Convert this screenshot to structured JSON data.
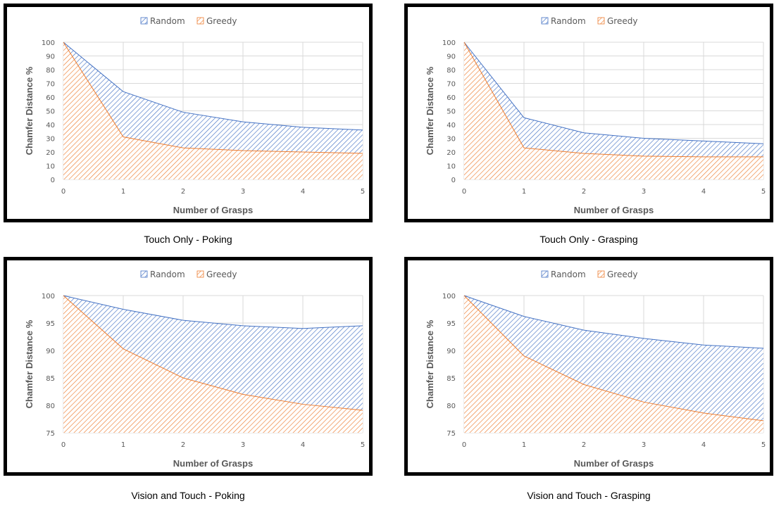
{
  "chart_data": [
    {
      "type": "area",
      "caption": "Touch Only - Poking",
      "xlabel": "Number of Grasps",
      "ylabel": "Chamfer Distance %",
      "x": [
        0,
        1,
        2,
        3,
        4,
        5
      ],
      "ylim": [
        0,
        100
      ],
      "yticks": [
        0,
        10,
        20,
        30,
        40,
        50,
        60,
        70,
        80,
        90,
        100
      ],
      "legend_position": "top",
      "series": [
        {
          "name": "Random",
          "values": [
            100,
            64,
            49,
            42,
            38,
            36
          ],
          "color": "#4472c4"
        },
        {
          "name": "Greedy",
          "values": [
            100,
            31,
            23,
            21,
            20,
            19
          ],
          "color": "#ed7d31"
        }
      ]
    },
    {
      "type": "area",
      "caption": "Touch Only - Grasping",
      "xlabel": "Number of Grasps",
      "ylabel": "Chamfer Distance %",
      "x": [
        0,
        1,
        2,
        3,
        4,
        5
      ],
      "ylim": [
        0,
        100
      ],
      "yticks": [
        0,
        10,
        20,
        30,
        40,
        50,
        60,
        70,
        80,
        90,
        100
      ],
      "legend_position": "top",
      "series": [
        {
          "name": "Random",
          "values": [
            100,
            45,
            34,
            30,
            28,
            26
          ],
          "color": "#4472c4"
        },
        {
          "name": "Greedy",
          "values": [
            100,
            23,
            19,
            17,
            16.5,
            16.5
          ],
          "color": "#ed7d31"
        }
      ]
    },
    {
      "type": "area",
      "caption": "Vision and Touch - Poking",
      "xlabel": "Number of Grasps",
      "ylabel": "Chamfer Distance %",
      "x": [
        0,
        1,
        2,
        3,
        4,
        5
      ],
      "ylim": [
        75,
        100
      ],
      "yticks": [
        75,
        80,
        85,
        90,
        95,
        100
      ],
      "legend_position": "top",
      "series": [
        {
          "name": "Random",
          "values": [
            100,
            97.5,
            95.5,
            94.5,
            94,
            94.5
          ],
          "color": "#4472c4"
        },
        {
          "name": "Greedy",
          "values": [
            100,
            90.3,
            85,
            82,
            80.2,
            79.1
          ],
          "color": "#ed7d31"
        }
      ]
    },
    {
      "type": "area",
      "caption": "Vision and Touch - Grasping",
      "xlabel": "Number of Grasps",
      "ylabel": "Chamfer Distance %",
      "x": [
        0,
        1,
        2,
        3,
        4,
        5
      ],
      "ylim": [
        75,
        100
      ],
      "yticks": [
        75,
        80,
        85,
        90,
        95,
        100
      ],
      "legend_position": "top",
      "series": [
        {
          "name": "Random",
          "values": [
            100,
            96.2,
            93.7,
            92.2,
            91,
            90.4
          ],
          "color": "#4472c4"
        },
        {
          "name": "Greedy",
          "values": [
            100,
            89,
            83.8,
            80.6,
            78.6,
            77.2
          ],
          "color": "#ed7d31"
        }
      ]
    }
  ]
}
